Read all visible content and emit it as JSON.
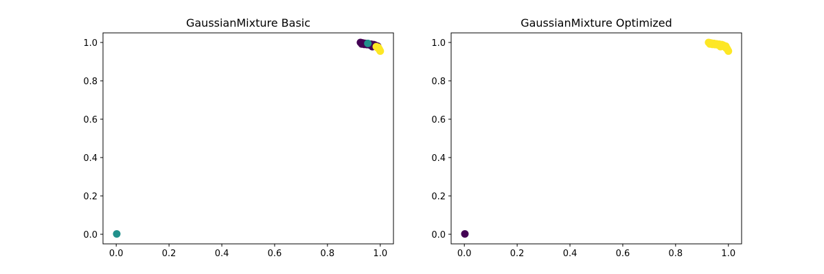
{
  "chart_data": [
    {
      "type": "scatter",
      "title": "GaussianMixture Basic",
      "xlabel": "",
      "ylabel": "",
      "xlim": [
        -0.05,
        1.05
      ],
      "ylim": [
        -0.05,
        1.05
      ],
      "xticks": [
        0.0,
        0.2,
        0.4,
        0.6,
        0.8,
        1.0
      ],
      "xtick_labels": [
        "0.0",
        "0.2",
        "0.4",
        "0.6",
        "0.8",
        "1.0"
      ],
      "yticks": [
        0.0,
        0.2,
        0.4,
        0.6,
        0.8,
        1.0
      ],
      "ytick_labels": [
        "0.0",
        "0.2",
        "0.4",
        "0.6",
        "0.8",
        "1.0"
      ],
      "grid": false,
      "colormap": "viridis",
      "series": [
        {
          "cluster": 0,
          "color": "#440154",
          "x": [
            0.925,
            0.93,
            0.935,
            0.94,
            0.945,
            0.95,
            0.955,
            0.96,
            0.965,
            0.97,
            0.975,
            0.98,
            0.93,
            0.94,
            0.95,
            0.96,
            0.97,
            0.98,
            0.985,
            0.99,
            0.935,
            0.945,
            0.955,
            0.965,
            0.975,
            0.97
          ],
          "y": [
            1.0,
            0.998,
            0.996,
            0.995,
            0.994,
            0.993,
            0.992,
            0.99,
            0.989,
            0.988,
            0.987,
            0.986,
            0.992,
            0.99,
            0.989,
            0.987,
            0.985,
            0.983,
            0.982,
            0.981,
            0.997,
            0.995,
            0.993,
            0.991,
            0.989,
            0.978
          ]
        },
        {
          "cluster": 1,
          "color": "#21918c",
          "x": [
            0.002,
            0.953
          ],
          "y": [
            0.002,
            0.995
          ]
        },
        {
          "cluster": 2,
          "color": "#fde725",
          "x": [
            0.985,
            0.99,
            0.995,
            0.997,
            0.999,
            1.0,
            0.992,
            0.996
          ],
          "y": [
            0.978,
            0.972,
            0.968,
            0.962,
            0.957,
            0.955,
            0.975,
            0.965
          ]
        }
      ]
    },
    {
      "type": "scatter",
      "title": "GaussianMixture Optimized",
      "xlabel": "",
      "ylabel": "",
      "xlim": [
        -0.05,
        1.05
      ],
      "ylim": [
        -0.05,
        1.05
      ],
      "xticks": [
        0.0,
        0.2,
        0.4,
        0.6,
        0.8,
        1.0
      ],
      "xtick_labels": [
        "0.0",
        "0.2",
        "0.4",
        "0.6",
        "0.8",
        "1.0"
      ],
      "yticks": [
        0.0,
        0.2,
        0.4,
        0.6,
        0.8,
        1.0
      ],
      "ytick_labels": [
        "0.0",
        "0.2",
        "0.4",
        "0.6",
        "0.8",
        "1.0"
      ],
      "grid": false,
      "colormap": "viridis",
      "series": [
        {
          "cluster": 0,
          "color": "#440154",
          "x": [
            0.002
          ],
          "y": [
            0.002
          ]
        },
        {
          "cluster": 1,
          "color": "#fde725",
          "x": [
            0.925,
            0.93,
            0.935,
            0.94,
            0.945,
            0.95,
            0.955,
            0.96,
            0.965,
            0.97,
            0.975,
            0.98,
            0.93,
            0.94,
            0.95,
            0.96,
            0.97,
            0.98,
            0.985,
            0.99,
            0.935,
            0.945,
            0.955,
            0.965,
            0.975,
            0.97,
            0.985,
            0.99,
            0.995,
            0.997,
            0.999,
            1.0,
            0.992,
            0.996
          ],
          "y": [
            1.0,
            0.998,
            0.996,
            0.995,
            0.994,
            0.993,
            0.992,
            0.99,
            0.989,
            0.988,
            0.987,
            0.986,
            0.992,
            0.99,
            0.989,
            0.987,
            0.985,
            0.983,
            0.982,
            0.981,
            0.997,
            0.995,
            0.993,
            0.991,
            0.989,
            0.978,
            0.978,
            0.972,
            0.968,
            0.962,
            0.957,
            0.955,
            0.975,
            0.965
          ]
        }
      ]
    }
  ]
}
